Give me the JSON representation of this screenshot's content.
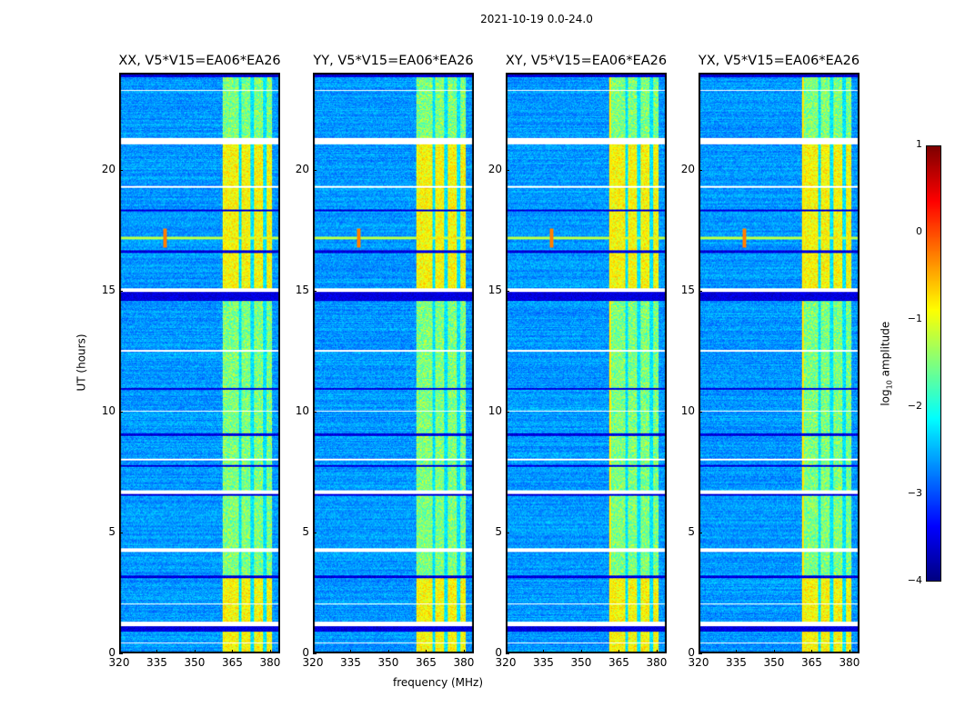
{
  "chart_data": {
    "type": "heatmap",
    "title": "2021-10-19 0.0-24.0",
    "xlabel": "frequency (MHz)",
    "ylabel": "UT (hours)",
    "xlim": [
      320,
      384
    ],
    "ylim": [
      0,
      24
    ],
    "xticks": [
      "320",
      "335",
      "350",
      "365",
      "380"
    ],
    "xtick_values": [
      320,
      335,
      350,
      365,
      380
    ],
    "yticks": [
      "0",
      "5",
      "10",
      "15",
      "20"
    ],
    "ytick_values": [
      0,
      5,
      10,
      15,
      20
    ],
    "panels": [
      {
        "title": "XX, V5*V15=EA06*EA26"
      },
      {
        "title": "YY, V5*V15=EA06*EA26"
      },
      {
        "title": "XY, V5*V15=EA06*EA26"
      },
      {
        "title": "YX, V5*V15=EA06*EA26"
      }
    ],
    "features": {
      "rfi_band_mhz": [
        361,
        381
      ],
      "band_gaps_mhz": [
        368,
        373,
        378
      ],
      "bright_hours": [
        [
          15.1,
          21.2
        ],
        [
          0.0,
          3.2
        ]
      ],
      "rfi_line_hour": 17.2,
      "rfi_spike_mhz": 338,
      "flagged_white_hours": [
        [
          21.1,
          21.35
        ],
        [
          14.95,
          15.1
        ],
        [
          6.6,
          6.75
        ],
        [
          4.2,
          4.35
        ],
        [
          1.1,
          1.3
        ],
        [
          23.3,
          23.35
        ],
        [
          19.3,
          19.35
        ],
        [
          12.5,
          12.55
        ],
        [
          10.0,
          10.05
        ],
        [
          8.0,
          8.05
        ],
        [
          2.0,
          2.05
        ],
        [
          0.4,
          0.45
        ]
      ],
      "flagged_dark_hours": [
        [
          24.0,
          23.85
        ],
        [
          14.6,
          14.95
        ],
        [
          6.5,
          6.6
        ],
        [
          3.1,
          3.2
        ],
        [
          0.9,
          1.1
        ],
        [
          18.3,
          18.4
        ],
        [
          16.6,
          16.7
        ],
        [
          10.9,
          11.0
        ],
        [
          9.0,
          9.1
        ],
        [
          7.7,
          7.8
        ]
      ]
    },
    "colorbar": {
      "label": "log10 amplitude",
      "label_main": "log",
      "label_sub": "10",
      "label_rest": " amplitude",
      "range": [
        -4,
        1
      ],
      "ticks": [
        "1",
        "0",
        "−1",
        "−2",
        "−3",
        "−4"
      ],
      "tick_values": [
        1,
        0,
        -1,
        -2,
        -3,
        -4
      ],
      "colormap": "jet"
    }
  }
}
